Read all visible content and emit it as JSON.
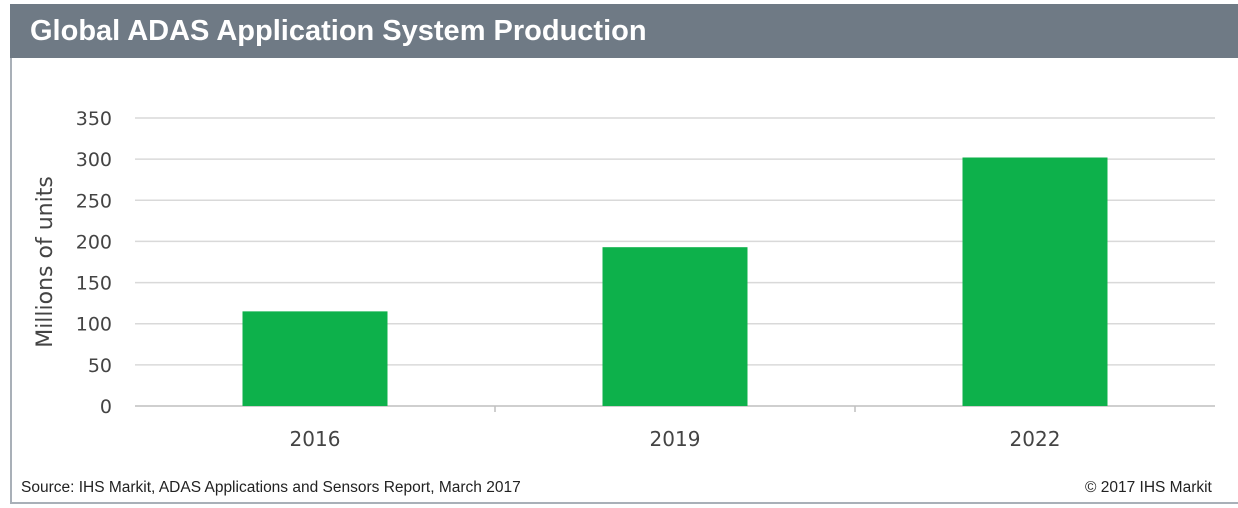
{
  "header": {
    "title": "Global ADAS Application System Production"
  },
  "footer": {
    "source": "Source: IHS Markit, ADAS Applications and Sensors Report, March 2017",
    "copyright": "© 2017 IHS Markit"
  },
  "colors": {
    "title_bar": "#6f7a85",
    "bar": "#0db14b",
    "gridline": "#d9d9d9"
  },
  "chart_data": {
    "type": "bar",
    "categories": [
      "2016",
      "2019",
      "2022"
    ],
    "values": [
      115,
      193,
      302
    ],
    "title": "Global ADAS Application System Production",
    "xlabel": "",
    "ylabel": "Millions of units",
    "ylim": [
      0,
      350
    ],
    "yticks": [
      0,
      50,
      100,
      150,
      200,
      250,
      300,
      350
    ],
    "grid": true,
    "legend": "none"
  }
}
